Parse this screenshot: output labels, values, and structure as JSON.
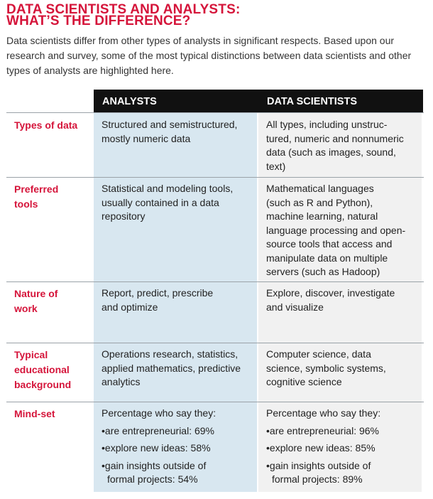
{
  "title_line1": "DATA SCIENTISTS AND ANALYSTS:",
  "title_line2": "WHAT’S THE DIFFERENCE?",
  "intro": "Data scientists differ from other types of analysts in significant respects. Based upon our research and survey, some of the most typical distinctions between data scientists and other types of analysts are highlighted here.",
  "headers": {
    "analysts": "ANALYSTS",
    "scientists": "DATA SCIENTISTS"
  },
  "rows": [
    {
      "label_lines": [
        "Types of data"
      ],
      "analysts_lines": [
        "Structured and semistructured,",
        "mostly numeric data"
      ],
      "scientists_lines": [
        "All types, including unstruc-",
        "tured, numeric and nonnumeric",
        "data (such as images, sound,",
        "text)"
      ]
    },
    {
      "label_lines": [
        "Preferred",
        "tools"
      ],
      "analysts_lines": [
        "Statistical and modeling tools,",
        "usually contained in a data",
        "repository"
      ],
      "scientists_lines": [
        "Mathematical languages",
        "(such as R and Python),",
        "machine learning, natural",
        "language processing and open-",
        "source tools that access and",
        "manipulate data on multiple",
        "servers (such as Hadoop)"
      ]
    },
    {
      "label_lines": [
        "Nature of",
        "work"
      ],
      "analysts_lines": [
        "Report, predict, prescribe",
        "and optimize"
      ],
      "scientists_lines": [
        "Explore, discover, investigate",
        "and visualize"
      ]
    },
    {
      "label_lines": [
        "Typical",
        "educational",
        "background"
      ],
      "analysts_lines": [
        "Operations research, statistics,",
        "applied mathematics, predictive",
        "analytics"
      ],
      "scientists_lines": [
        "Computer science, data",
        "science, symbolic systems,",
        "cognitive science"
      ]
    }
  ],
  "mindset": {
    "label": "Mind-set",
    "analysts": {
      "intro": "Percentage who say they:",
      "b1": "•are entrepreneurial: 69%",
      "b2": "•explore new ideas: 58%",
      "b3a": "•gain insights outside of",
      "b3b": "formal projects: 54%"
    },
    "scientists": {
      "intro": "Percentage who say they:",
      "b1": "•are entrepreneurial: 96%",
      "b2": "•explore new ideas: 85%",
      "b3a": "•gain insights outside of",
      "b3b": "formal projects: 89%"
    }
  }
}
